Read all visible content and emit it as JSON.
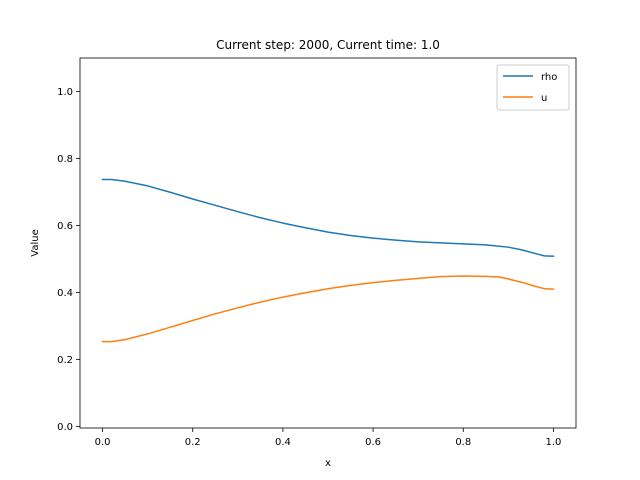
{
  "chart_data": {
    "type": "line",
    "title": "Current step: 2000, Current time: 1.0",
    "xlabel": "x",
    "ylabel": "Value",
    "xlim": [
      -0.05,
      1.05
    ],
    "ylim": [
      -0.005,
      1.1
    ],
    "xticks": [
      0.0,
      0.2,
      0.4,
      0.6,
      0.8,
      1.0
    ],
    "xtick_labels": [
      "0.0",
      "0.2",
      "0.4",
      "0.6",
      "0.8",
      "1.0"
    ],
    "yticks": [
      0.0,
      0.2,
      0.4,
      0.6,
      0.8,
      1.0
    ],
    "ytick_labels": [
      "0.0",
      "0.2",
      "0.4",
      "0.6",
      "0.8",
      "1.0"
    ],
    "grid": false,
    "legend_position": "top-right",
    "series": [
      {
        "name": "rho",
        "color": "#1f77b4",
        "x": [
          0.0,
          0.02,
          0.05,
          0.1,
          0.15,
          0.2,
          0.25,
          0.3,
          0.35,
          0.4,
          0.45,
          0.5,
          0.55,
          0.6,
          0.65,
          0.7,
          0.75,
          0.8,
          0.85,
          0.9,
          0.93,
          0.96,
          0.98,
          1.0
        ],
        "y": [
          0.737,
          0.737,
          0.732,
          0.718,
          0.699,
          0.679,
          0.66,
          0.641,
          0.623,
          0.607,
          0.593,
          0.58,
          0.57,
          0.562,
          0.556,
          0.551,
          0.548,
          0.545,
          0.542,
          0.535,
          0.527,
          0.516,
          0.509,
          0.508
        ]
      },
      {
        "name": "u",
        "color": "#ff7f0e",
        "x": [
          0.0,
          0.02,
          0.05,
          0.1,
          0.15,
          0.2,
          0.25,
          0.3,
          0.35,
          0.4,
          0.45,
          0.5,
          0.55,
          0.6,
          0.65,
          0.7,
          0.75,
          0.8,
          0.85,
          0.88,
          0.9,
          0.93,
          0.96,
          0.98,
          1.0
        ],
        "y": [
          0.253,
          0.253,
          0.259,
          0.276,
          0.296,
          0.316,
          0.336,
          0.354,
          0.371,
          0.386,
          0.399,
          0.411,
          0.421,
          0.429,
          0.436,
          0.442,
          0.447,
          0.449,
          0.448,
          0.446,
          0.44,
          0.43,
          0.418,
          0.411,
          0.41
        ]
      }
    ]
  }
}
